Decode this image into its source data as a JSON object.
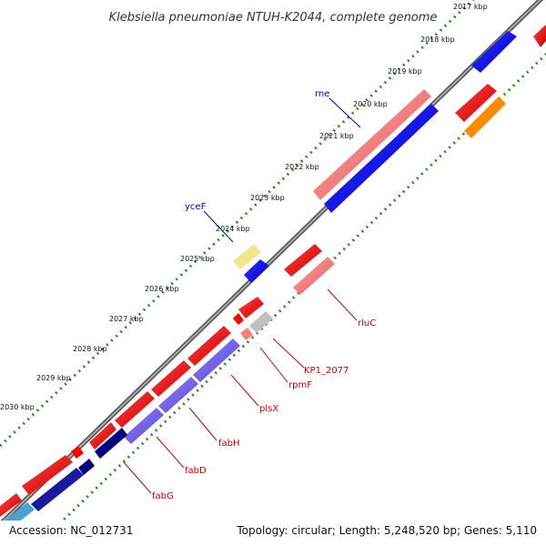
{
  "title": "Klebsiella pneumoniae NTUH-K2044, complete genome",
  "footer": {
    "accession": "Accession: NC_012731",
    "summary": "Topology: circular; Length: 5,248,520 bp; Genes: 5,110"
  },
  "ticks": [
    "2017 kbp",
    "2018 kbp",
    "2019 kbp",
    "2020 kbp",
    "2021 kbp",
    "2022 kbp",
    "2023 kbp",
    "2024 kbp",
    "2025 kbp",
    "2026 kbp",
    "2027 kbp",
    "2028 kbp",
    "2029 kbp",
    "2030 kbp"
  ],
  "gene_labels": {
    "rne": "rne",
    "yceF": "yceF",
    "rluC": "rluC",
    "KP1_2077": "KP1_2077",
    "rpmF": "rpmF",
    "plsX": "plsX",
    "fabH": "fabH",
    "fabD": "fabD",
    "fabG": "fabG"
  },
  "colors": {
    "backbone": "#808080",
    "tick_dots": "#2a8a2a",
    "forward_gene": "#ff0000",
    "reverse_gene": "#ff0000",
    "cds_forward": "#f08080",
    "cds_reverse": "#0000ff",
    "cds_reverse_alt": "#7b68ee",
    "cds_dark": "#000080",
    "pseudo_gray": "#c0c0c0",
    "yellow_gene": "#f0e68c",
    "orange_gene": "#ff8c00",
    "label_blue": "#0000cc",
    "label_red": "#cc0000"
  }
}
